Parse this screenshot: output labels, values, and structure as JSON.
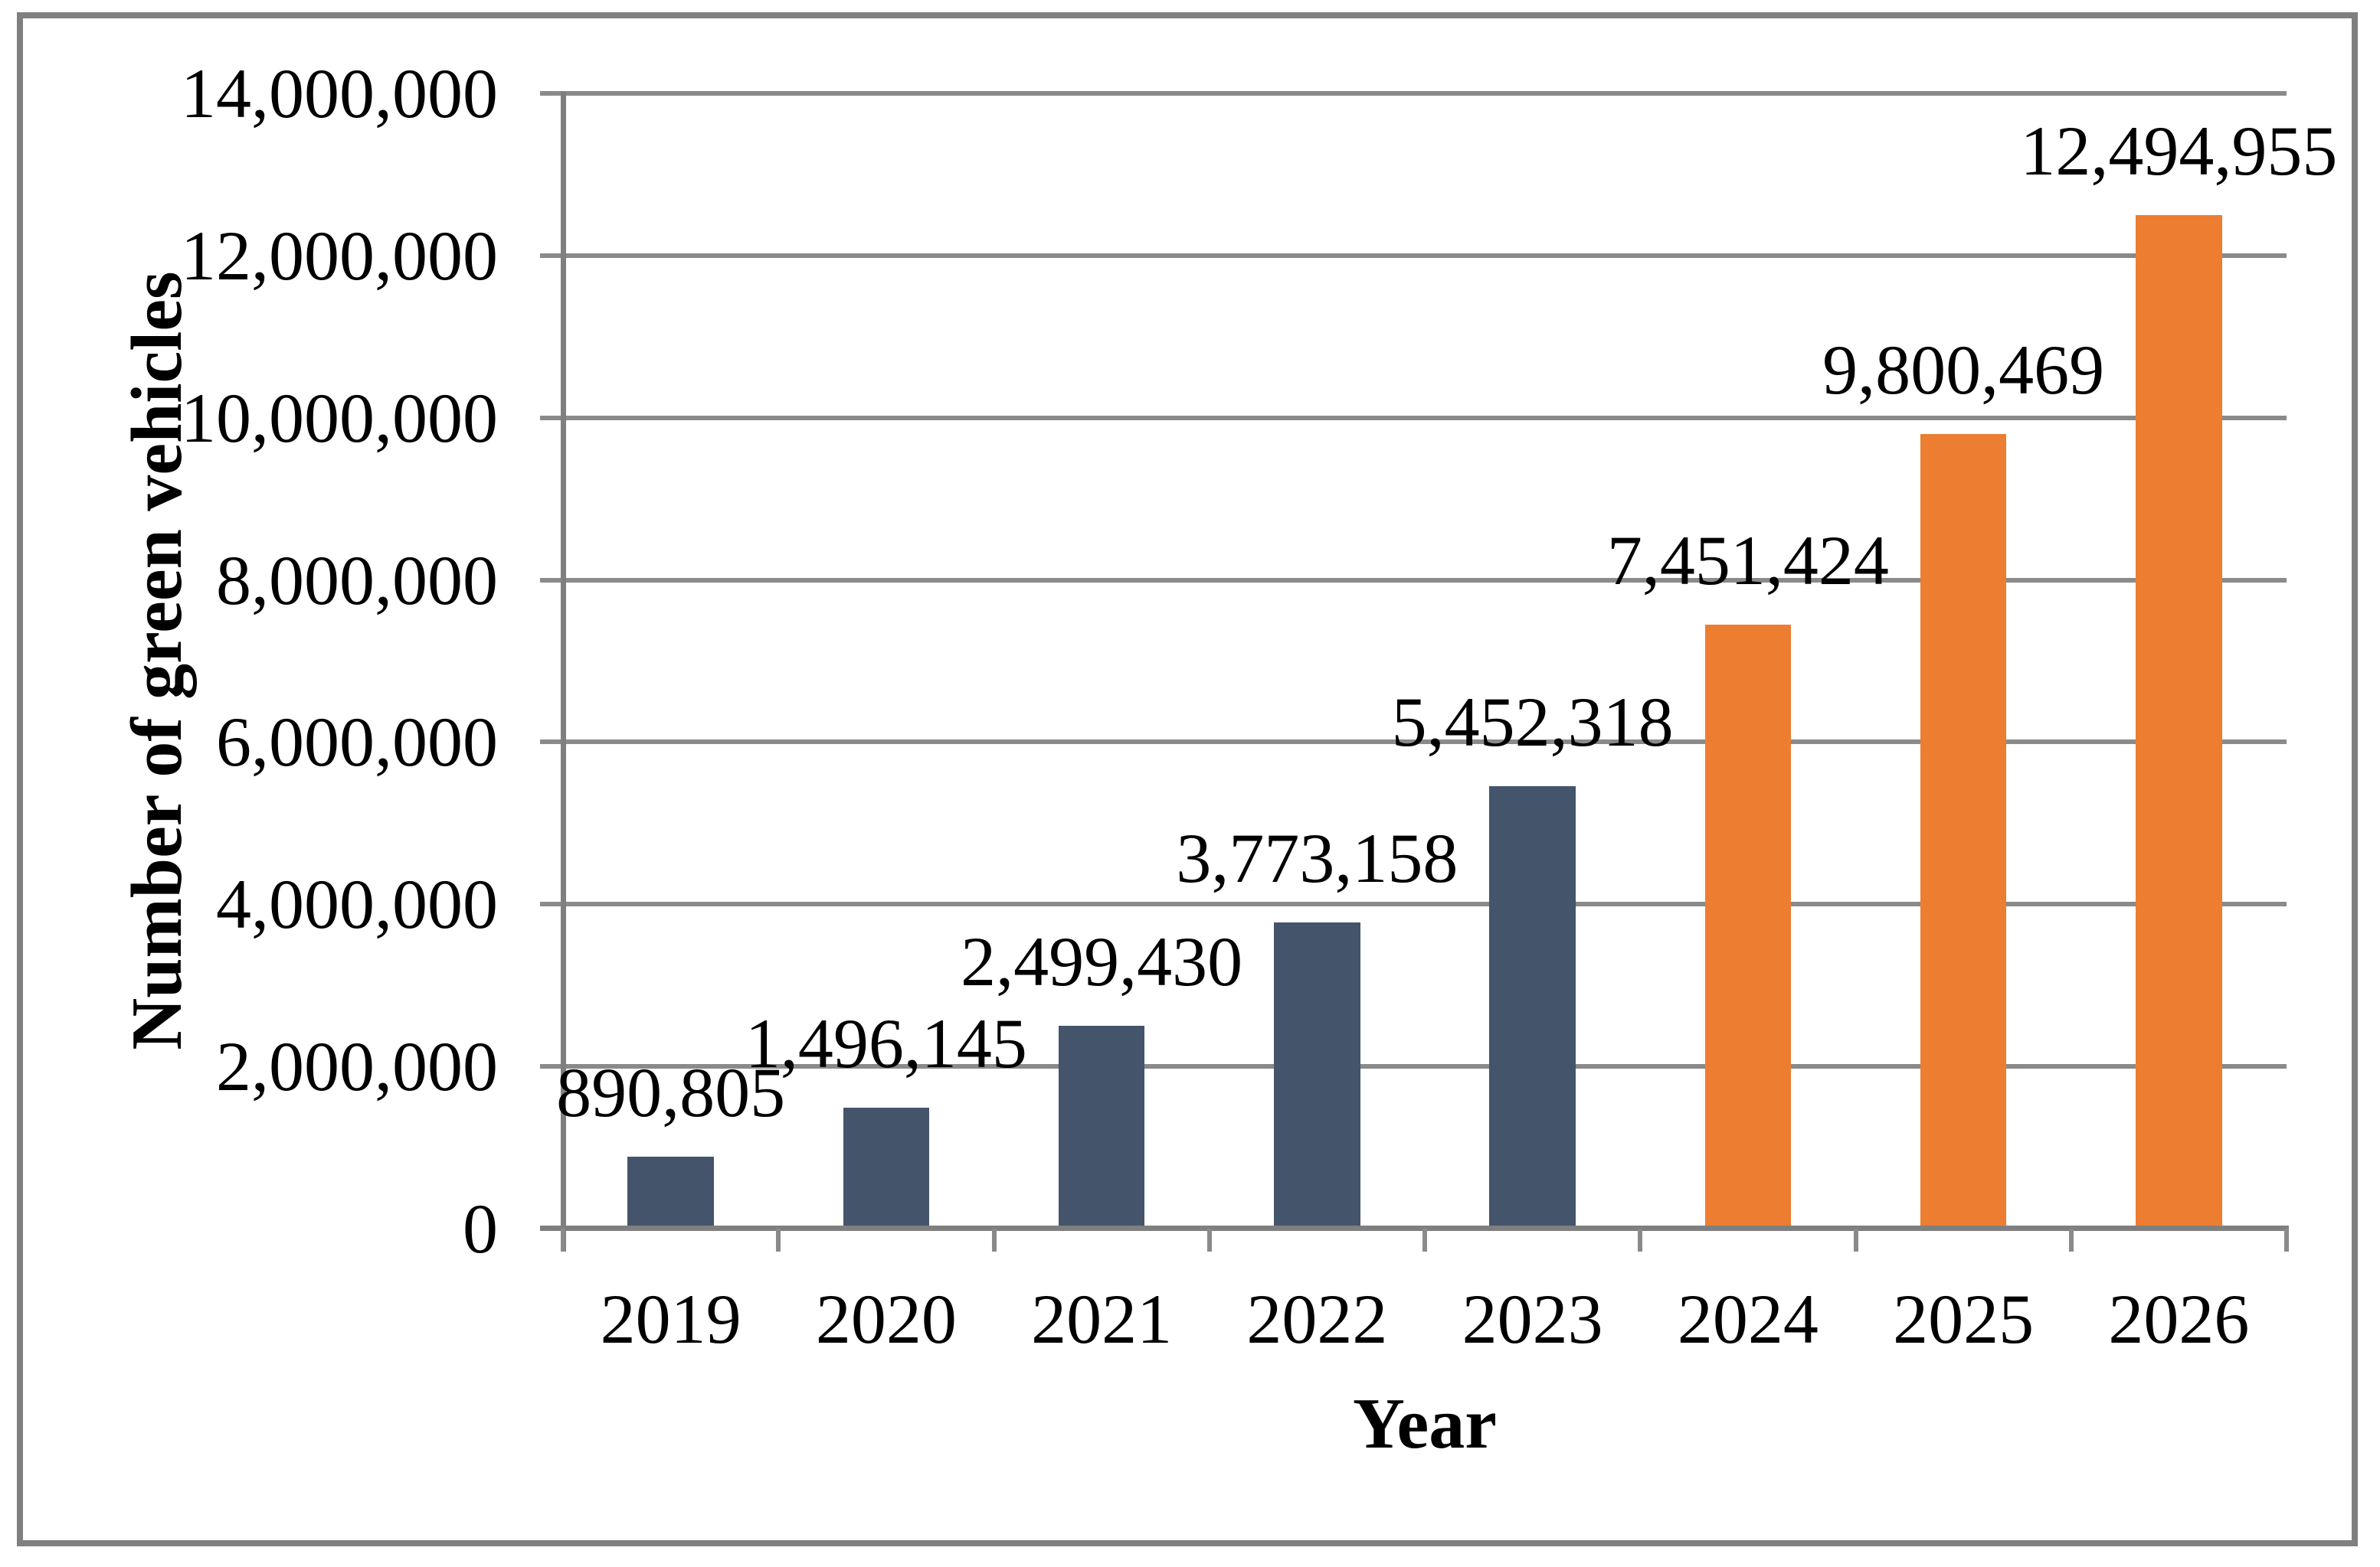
{
  "figure": {
    "background": "#FFFFFF",
    "border_color": "#7F7F7F"
  },
  "chart_data": {
    "type": "bar",
    "title": "",
    "xlabel": "Year",
    "ylabel": "Number of green vehicles",
    "categories": [
      "2019",
      "2020",
      "2021",
      "2022",
      "2023",
      "2024",
      "2025",
      "2026"
    ],
    "values": [
      890805,
      1496145,
      2499430,
      3773158,
      5452318,
      7451424,
      9800469,
      12494955
    ],
    "data_labels": [
      "890,805",
      "1,496,145",
      "2,499,430",
      "3,773,158",
      "5,452,318",
      "7,451,424",
      "9,800,469",
      "12,494,955"
    ],
    "bar_colors": [
      "#44546A",
      "#44546A",
      "#44546A",
      "#44546A",
      "#44546A",
      "#ED7D31",
      "#ED7D31",
      "#ED7D31"
    ],
    "ylim": [
      0,
      14000000
    ],
    "ytick_step": 2000000,
    "y_tick_labels": [
      "0",
      "2,000,000",
      "4,000,000",
      "6,000,000",
      "8,000,000",
      "10,000,000",
      "12,000,000",
      "14,000,000"
    ],
    "grid": "horizontal gridlines on",
    "legend": "none",
    "gridline_color": "#8A8A8A",
    "axis_color": "#7F7F7F",
    "text_color": "#000000"
  }
}
